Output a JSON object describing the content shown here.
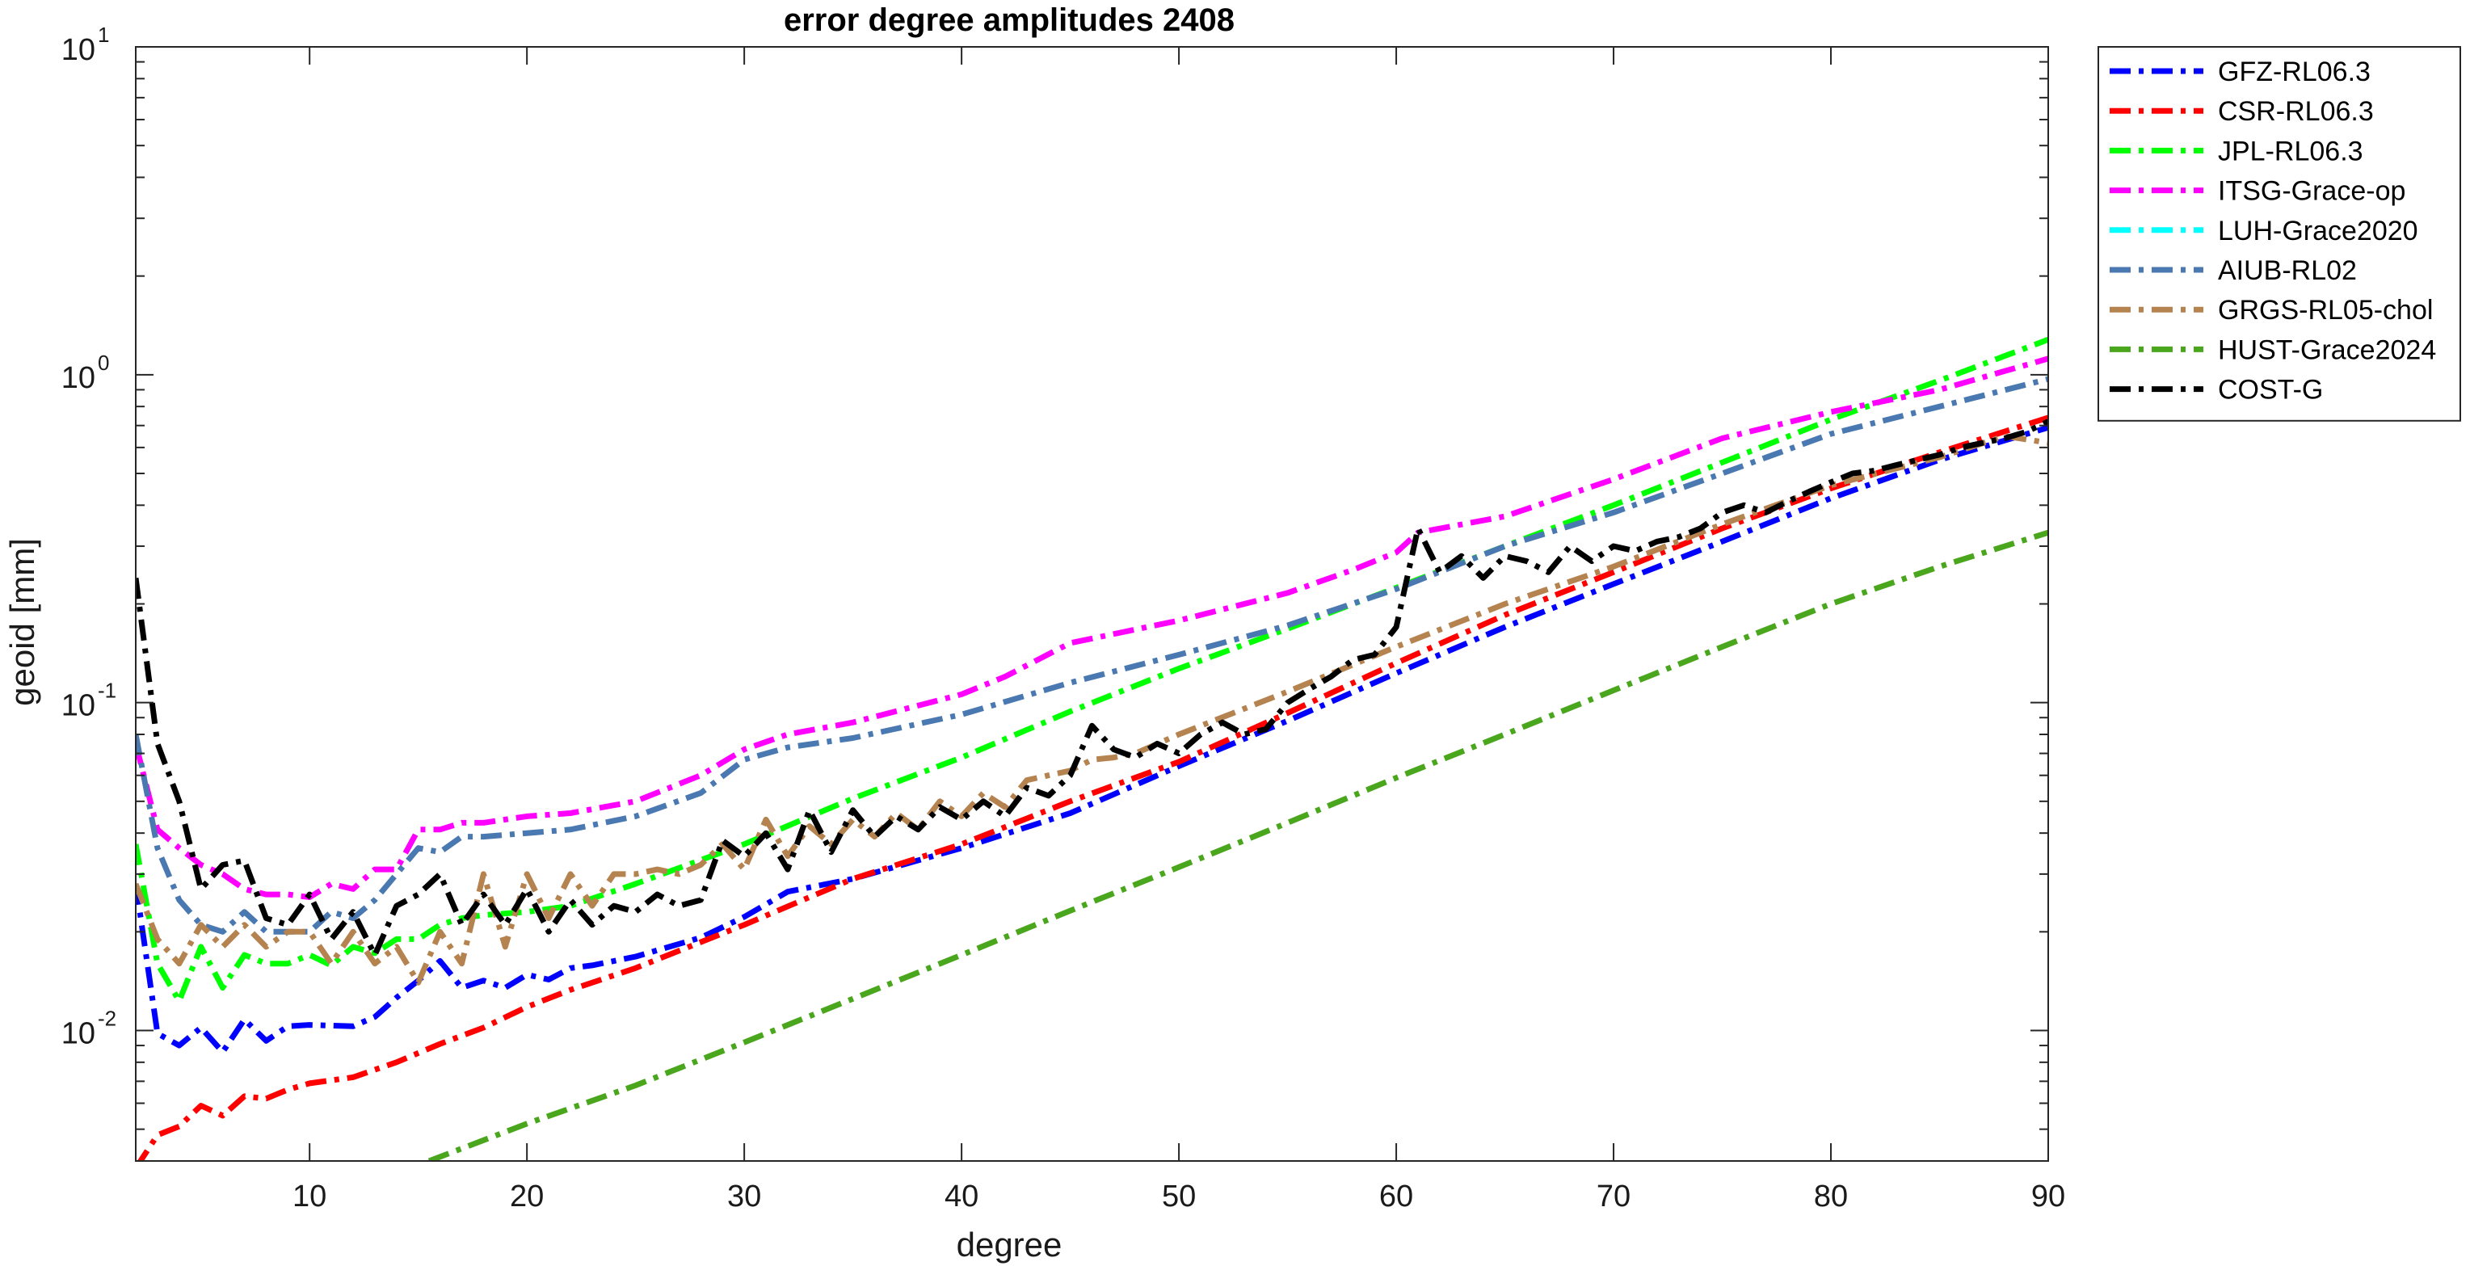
{
  "chart_data": {
    "type": "line",
    "title": "error degree amplitudes 2408",
    "xlabel": "degree",
    "ylabel": "geoid [mm]",
    "xlim": [
      2,
      90
    ],
    "ylim": [
      0.004,
      10
    ],
    "yscale": "log",
    "x_ticks": [
      10,
      20,
      30,
      40,
      50,
      60,
      70,
      80,
      90
    ],
    "x_tick_labels": [
      "10",
      "20",
      "30",
      "40",
      "50",
      "60",
      "70",
      "80",
      "90"
    ],
    "y_ticks": [
      {
        "value": 0.01,
        "base": "10",
        "exp": "-2"
      },
      {
        "value": 0.1,
        "base": "10",
        "exp": "-1"
      },
      {
        "value": 1,
        "base": "10",
        "exp": "0"
      },
      {
        "value": 10,
        "base": "10",
        "exp": "1"
      }
    ],
    "grid": false,
    "legend_position": "outside-top-right",
    "line_style": "dash-dot",
    "series": [
      {
        "name": "GFZ-RL06.3",
        "color": "#0000ff",
        "x": [
          2,
          3,
          4,
          5,
          6,
          7,
          8,
          9,
          10,
          12,
          13,
          14,
          15,
          16,
          17,
          18,
          19,
          20,
          21,
          22,
          23,
          25,
          28,
          30,
          32,
          35,
          40,
          45,
          50,
          55,
          60,
          65,
          70,
          75,
          80,
          85,
          90
        ],
        "y": [
          0.028,
          0.0098,
          0.009,
          0.0102,
          0.0086,
          0.0108,
          0.0093,
          0.0103,
          0.0104,
          0.0103,
          0.011,
          0.0126,
          0.0142,
          0.0163,
          0.0135,
          0.0142,
          0.0135,
          0.0148,
          0.0143,
          0.0155,
          0.0158,
          0.0168,
          0.0192,
          0.0222,
          0.0265,
          0.029,
          0.036,
          0.046,
          0.064,
          0.088,
          0.123,
          0.17,
          0.23,
          0.31,
          0.42,
          0.55,
          0.69
        ]
      },
      {
        "name": "CSR-RL06.3",
        "color": "#ff0000",
        "x": [
          2,
          3,
          4,
          5,
          6,
          7,
          8,
          9,
          10,
          12,
          14,
          16,
          18,
          20,
          22,
          25,
          30,
          35,
          40,
          45,
          50,
          55,
          60,
          65,
          70,
          75,
          80,
          85,
          90
        ],
        "y": [
          0.0038,
          0.0048,
          0.0051,
          0.0059,
          0.0055,
          0.0063,
          0.0062,
          0.0066,
          0.0069,
          0.0072,
          0.008,
          0.0091,
          0.0102,
          0.0118,
          0.0133,
          0.0155,
          0.021,
          0.029,
          0.037,
          0.05,
          0.066,
          0.093,
          0.132,
          0.185,
          0.25,
          0.34,
          0.45,
          0.58,
          0.74
        ]
      },
      {
        "name": "JPL-RL06.3",
        "color": "#00ff00",
        "x": [
          2,
          3,
          4,
          5,
          6,
          7,
          8,
          9,
          10,
          11,
          12,
          13,
          14,
          15,
          16,
          17,
          18,
          20,
          22,
          25,
          30,
          35,
          40,
          45,
          50,
          55,
          60,
          65,
          70,
          75,
          80,
          85,
          90
        ],
        "y": [
          0.037,
          0.016,
          0.0123,
          0.018,
          0.0135,
          0.017,
          0.016,
          0.016,
          0.017,
          0.0158,
          0.018,
          0.0172,
          0.019,
          0.019,
          0.021,
          0.022,
          0.0225,
          0.023,
          0.024,
          0.028,
          0.037,
          0.051,
          0.068,
          0.094,
          0.127,
          0.168,
          0.224,
          0.3,
          0.4,
          0.54,
          0.73,
          0.96,
          1.28
        ]
      },
      {
        "name": "ITSG-Grace-op",
        "color": "#ff00ff",
        "x": [
          2,
          3,
          4,
          5,
          6,
          7,
          8,
          9,
          10,
          11,
          12,
          13,
          14,
          15,
          16,
          17,
          18,
          20,
          22,
          25,
          28,
          30,
          32,
          35,
          40,
          42,
          45,
          50,
          55,
          58,
          60,
          61,
          65,
          70,
          75,
          80,
          85,
          90
        ],
        "y": [
          0.075,
          0.041,
          0.036,
          0.032,
          0.03,
          0.027,
          0.026,
          0.026,
          0.0255,
          0.028,
          0.027,
          0.031,
          0.031,
          0.041,
          0.041,
          0.043,
          0.043,
          0.045,
          0.046,
          0.05,
          0.06,
          0.072,
          0.08,
          0.087,
          0.106,
          0.12,
          0.152,
          0.178,
          0.216,
          0.254,
          0.287,
          0.33,
          0.37,
          0.48,
          0.64,
          0.77,
          0.9,
          1.12
        ]
      },
      {
        "name": "LUH-Grace2020",
        "color": "#00ffff",
        "x": [],
        "y": []
      },
      {
        "name": "AIUB-RL02",
        "color": "#4a78b0",
        "x": [
          2,
          3,
          4,
          5,
          6,
          7,
          8,
          9,
          10,
          11,
          12,
          13,
          14,
          15,
          16,
          17,
          18,
          20,
          22,
          25,
          28,
          30,
          32,
          35,
          40,
          45,
          50,
          55,
          60,
          65,
          70,
          75,
          80,
          85,
          90
        ],
        "y": [
          0.08,
          0.036,
          0.025,
          0.021,
          0.02,
          0.023,
          0.02,
          0.02,
          0.02,
          0.023,
          0.022,
          0.025,
          0.03,
          0.036,
          0.035,
          0.039,
          0.039,
          0.04,
          0.041,
          0.045,
          0.053,
          0.067,
          0.073,
          0.078,
          0.092,
          0.115,
          0.14,
          0.172,
          0.222,
          0.3,
          0.38,
          0.5,
          0.66,
          0.8,
          0.97
        ]
      },
      {
        "name": "GRGS-RL05-chol",
        "color": "#b5834f",
        "x": [
          2,
          3,
          4,
          5,
          6,
          7,
          8,
          9,
          10,
          11,
          12,
          13,
          14,
          15,
          16,
          17,
          18,
          19,
          20,
          21,
          22,
          23,
          24,
          25,
          26,
          27,
          28,
          29,
          30,
          31,
          32,
          33,
          34,
          35,
          36,
          37,
          38,
          39,
          40,
          41,
          42,
          43,
          44,
          45,
          46,
          47,
          48,
          50,
          55,
          60,
          65,
          70,
          75,
          80,
          85,
          88,
          90
        ],
        "y": [
          0.028,
          0.019,
          0.016,
          0.021,
          0.018,
          0.021,
          0.018,
          0.02,
          0.02,
          0.016,
          0.02,
          0.016,
          0.018,
          0.014,
          0.02,
          0.016,
          0.03,
          0.018,
          0.03,
          0.022,
          0.03,
          0.024,
          0.03,
          0.03,
          0.031,
          0.03,
          0.032,
          0.037,
          0.031,
          0.044,
          0.034,
          0.042,
          0.037,
          0.044,
          0.039,
          0.046,
          0.041,
          0.05,
          0.045,
          0.053,
          0.048,
          0.058,
          0.06,
          0.062,
          0.067,
          0.068,
          0.07,
          0.08,
          0.108,
          0.148,
          0.2,
          0.26,
          0.35,
          0.46,
          0.56,
          0.65,
          0.62
        ]
      },
      {
        "name": "HUST-Grace2024",
        "color": "#4aa61c",
        "x": [
          15.5,
          20,
          25,
          30,
          35,
          40,
          45,
          50,
          55,
          60,
          65,
          70,
          75,
          80,
          85,
          90
        ],
        "y": [
          0.004,
          0.0052,
          0.0068,
          0.0092,
          0.0125,
          0.017,
          0.0232,
          0.0315,
          0.043,
          0.059,
          0.08,
          0.109,
          0.148,
          0.2,
          0.26,
          0.33
        ]
      },
      {
        "name": "COST-G",
        "color": "#000000",
        "x": [
          2,
          3,
          4,
          5,
          6,
          7,
          8,
          9,
          10,
          11,
          12,
          13,
          14,
          15,
          16,
          17,
          18,
          19,
          20,
          21,
          22,
          23,
          24,
          25,
          26,
          27,
          28,
          29,
          30,
          31,
          32,
          33,
          34,
          35,
          36,
          37,
          38,
          39,
          40,
          41,
          42,
          43,
          44,
          45,
          46,
          47,
          48,
          49,
          50,
          51,
          52,
          53,
          54,
          55,
          56,
          57,
          58,
          59,
          60,
          61,
          62,
          63,
          64,
          65,
          66,
          67,
          68,
          69,
          70,
          71,
          72,
          73,
          74,
          75,
          76,
          77,
          78,
          79,
          80,
          81,
          82,
          83,
          84,
          85,
          86,
          87,
          88,
          89,
          90
        ],
        "y": [
          0.24,
          0.075,
          0.05,
          0.027,
          0.032,
          0.033,
          0.022,
          0.021,
          0.026,
          0.019,
          0.023,
          0.017,
          0.024,
          0.026,
          0.03,
          0.021,
          0.026,
          0.021,
          0.027,
          0.02,
          0.025,
          0.021,
          0.024,
          0.023,
          0.026,
          0.024,
          0.025,
          0.038,
          0.034,
          0.04,
          0.031,
          0.047,
          0.035,
          0.047,
          0.039,
          0.045,
          0.041,
          0.048,
          0.044,
          0.05,
          0.045,
          0.055,
          0.052,
          0.06,
          0.085,
          0.072,
          0.068,
          0.075,
          0.07,
          0.08,
          0.087,
          0.08,
          0.083,
          0.1,
          0.11,
          0.12,
          0.135,
          0.14,
          0.17,
          0.34,
          0.25,
          0.28,
          0.24,
          0.28,
          0.27,
          0.25,
          0.3,
          0.27,
          0.3,
          0.29,
          0.31,
          0.32,
          0.34,
          0.38,
          0.4,
          0.38,
          0.41,
          0.44,
          0.47,
          0.5,
          0.51,
          0.53,
          0.55,
          0.57,
          0.6,
          0.62,
          0.64,
          0.67,
          0.72
        ]
      }
    ]
  }
}
